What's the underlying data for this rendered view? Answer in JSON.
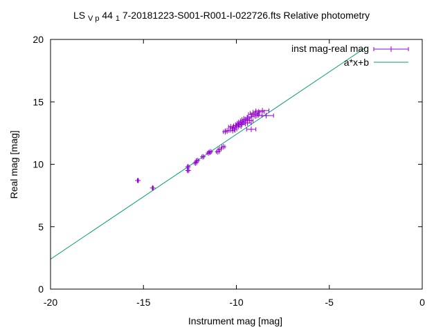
{
  "title": {
    "prefix": "LS",
    "sub1": "V p",
    "mid": "44",
    "sub2": "1",
    "suffix": "7-20181223-S001-R001-I-022726.fts Relative photometry"
  },
  "chart_data": {
    "type": "scatter",
    "xlabel": "Instrument mag [mag]",
    "ylabel": "Real mag [mag]",
    "xlim": [
      -20,
      0
    ],
    "ylim": [
      0,
      20
    ],
    "xticks": [
      -20,
      -15,
      -10,
      -5,
      0
    ],
    "yticks": [
      0,
      5,
      10,
      15,
      20
    ],
    "grid": false,
    "legend_position": "top-right",
    "legend": [
      {
        "label": "inst mag-real mag",
        "color": "#9400d3",
        "style": "errorbar-points"
      },
      {
        "label": "a*x+b",
        "color": "#009e73",
        "style": "line"
      }
    ],
    "fit_line": {
      "slope": 1.0,
      "intercept": 22.4,
      "x_range": [
        -20,
        -3
      ]
    },
    "series": [
      {
        "name": "inst mag-real mag",
        "points": [
          {
            "x": -15.3,
            "y": 8.7,
            "xerr": 0.03
          },
          {
            "x": -14.5,
            "y": 8.1,
            "xerr": 0.03
          },
          {
            "x": -12.6,
            "y": 9.8,
            "xerr": 0.05
          },
          {
            "x": -12.6,
            "y": 9.5,
            "xerr": 0.05
          },
          {
            "x": -12.2,
            "y": 10.1,
            "xerr": 0.06
          },
          {
            "x": -12.1,
            "y": 10.3,
            "xerr": 0.06
          },
          {
            "x": -11.8,
            "y": 10.6,
            "xerr": 0.06
          },
          {
            "x": -11.5,
            "y": 10.9,
            "xerr": 0.07
          },
          {
            "x": -11.4,
            "y": 11.0,
            "xerr": 0.07
          },
          {
            "x": -11.0,
            "y": 11.0,
            "xerr": 0.08
          },
          {
            "x": -10.9,
            "y": 11.2,
            "xerr": 0.08
          },
          {
            "x": -10.7,
            "y": 11.4,
            "xerr": 0.08
          },
          {
            "x": -10.6,
            "y": 12.6,
            "xerr": 0.1
          },
          {
            "x": -10.5,
            "y": 12.7,
            "xerr": 0.1
          },
          {
            "x": -10.3,
            "y": 13.0,
            "xerr": 0.12
          },
          {
            "x": -10.2,
            "y": 12.9,
            "xerr": 0.12
          },
          {
            "x": -10.1,
            "y": 12.8,
            "xerr": 0.12
          },
          {
            "x": -10.0,
            "y": 13.1,
            "xerr": 0.15
          },
          {
            "x": -9.9,
            "y": 13.2,
            "xerr": 0.15
          },
          {
            "x": -9.8,
            "y": 13.3,
            "xerr": 0.15
          },
          {
            "x": -9.7,
            "y": 13.4,
            "xerr": 0.18
          },
          {
            "x": -9.6,
            "y": 13.5,
            "xerr": 0.18
          },
          {
            "x": -9.5,
            "y": 13.6,
            "xerr": 0.2
          },
          {
            "x": -9.4,
            "y": 13.7,
            "xerr": 0.2
          },
          {
            "x": -9.3,
            "y": 13.5,
            "xerr": 0.2
          },
          {
            "x": -9.2,
            "y": 13.8,
            "xerr": 0.22
          },
          {
            "x": -9.1,
            "y": 14.0,
            "xerr": 0.25
          },
          {
            "x": -9.0,
            "y": 14.1,
            "xerr": 0.25
          },
          {
            "x": -8.9,
            "y": 13.9,
            "xerr": 0.28
          },
          {
            "x": -8.8,
            "y": 14.2,
            "xerr": 0.3
          },
          {
            "x": -8.6,
            "y": 14.3,
            "xerr": 0.35
          },
          {
            "x": -8.4,
            "y": 13.9,
            "xerr": 0.4
          },
          {
            "x": -9.7,
            "y": 13.2,
            "xerr": 0.18
          },
          {
            "x": -9.4,
            "y": 13.3,
            "xerr": 0.2
          },
          {
            "x": -9.2,
            "y": 12.8,
            "xerr": 0.25
          },
          {
            "x": -10.2,
            "y": 12.7,
            "xerr": 0.12
          },
          {
            "x": -9.9,
            "y": 13.0,
            "xerr": 0.15
          }
        ]
      }
    ]
  }
}
